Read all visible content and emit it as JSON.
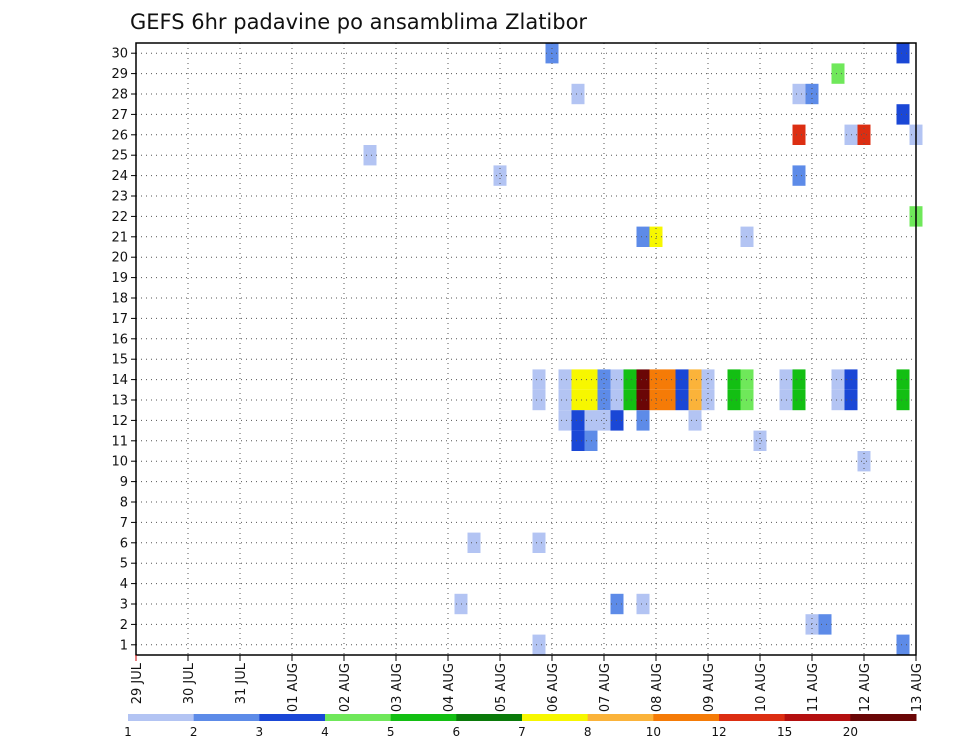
{
  "chart_data": {
    "type": "heatmap",
    "title": "GEFS 6hr padavine po ansamblima Zlatibor",
    "x_tick_labels": [
      "29 JUL",
      "30 JUL",
      "31 JUL",
      "01 AUG",
      "02 AUG",
      "03 AUG",
      "04 AUG",
      "05 AUG",
      "06 AUG",
      "07 AUG",
      "08 AUG",
      "09 AUG",
      "10 AUG",
      "11 AUG",
      "12 AUG",
      "13 AUG"
    ],
    "y_tick_labels": [
      "1",
      "2",
      "3",
      "4",
      "5",
      "6",
      "7",
      "8",
      "9",
      "10",
      "11",
      "12",
      "13",
      "14",
      "15",
      "16",
      "17",
      "18",
      "19",
      "20",
      "21",
      "22",
      "23",
      "24",
      "25",
      "26",
      "27",
      "28",
      "29",
      "30"
    ],
    "ylim": [
      0.5,
      30.5
    ],
    "xlim_days": [
      0,
      15
    ],
    "grid": true,
    "levels": {
      "labels": [
        "1",
        "2",
        "3",
        "4",
        "5",
        "6",
        "7",
        "8",
        "10",
        "12",
        "15",
        "20"
      ],
      "colors": [
        "#b3c4f3",
        "#5d8be8",
        "#1a47d6",
        "#6fe85a",
        "#13bf13",
        "#0a7a0a",
        "#f7f700",
        "#fbb33a",
        "#f57b07",
        "#dc2e12",
        "#b40f0f",
        "#6a0606"
      ]
    },
    "cells": [
      {
        "day": 8.0,
        "member": 30,
        "cls": 1
      },
      {
        "day": 14.75,
        "member": 30,
        "cls": 2
      },
      {
        "day": 13.5,
        "member": 29,
        "cls": 3
      },
      {
        "day": 8.5,
        "member": 28,
        "cls": 0
      },
      {
        "day": 12.75,
        "member": 28,
        "cls": 0
      },
      {
        "day": 13.0,
        "member": 28,
        "cls": 1
      },
      {
        "day": 14.75,
        "member": 27,
        "cls": 2
      },
      {
        "day": 12.75,
        "member": 26,
        "cls": 9
      },
      {
        "day": 13.75,
        "member": 26,
        "cls": 0
      },
      {
        "day": 14.0,
        "member": 26,
        "cls": 9
      },
      {
        "day": 15.0,
        "member": 26,
        "cls": 0
      },
      {
        "day": 4.5,
        "member": 25,
        "cls": 0
      },
      {
        "day": 7.0,
        "member": 24,
        "cls": 0
      },
      {
        "day": 12.75,
        "member": 24,
        "cls": 1
      },
      {
        "day": 15.0,
        "member": 22,
        "cls": 3
      },
      {
        "day": 9.75,
        "member": 21,
        "cls": 1
      },
      {
        "day": 10.0,
        "member": 21,
        "cls": 6
      },
      {
        "day": 11.75,
        "member": 21,
        "cls": 0
      },
      {
        "day": 7.75,
        "member": 14,
        "cls": 0
      },
      {
        "day": 7.75,
        "member": 13,
        "cls": 0
      },
      {
        "day": 8.25,
        "member": 14,
        "cls": 0
      },
      {
        "day": 8.25,
        "member": 13,
        "cls": 0
      },
      {
        "day": 8.5,
        "member": 14,
        "cls": 6
      },
      {
        "day": 8.5,
        "member": 13,
        "cls": 6
      },
      {
        "day": 8.75,
        "member": 14,
        "cls": 6
      },
      {
        "day": 8.75,
        "member": 13,
        "cls": 6
      },
      {
        "day": 9.0,
        "member": 14,
        "cls": 1
      },
      {
        "day": 9.0,
        "member": 13,
        "cls": 1
      },
      {
        "day": 9.25,
        "member": 14,
        "cls": 0
      },
      {
        "day": 9.25,
        "member": 13,
        "cls": 0
      },
      {
        "day": 9.5,
        "member": 14,
        "cls": 4
      },
      {
        "day": 9.5,
        "member": 13,
        "cls": 4
      },
      {
        "day": 9.75,
        "member": 14,
        "cls": 11
      },
      {
        "day": 9.75,
        "member": 13,
        "cls": 11
      },
      {
        "day": 10.0,
        "member": 14,
        "cls": 8
      },
      {
        "day": 10.0,
        "member": 13,
        "cls": 8
      },
      {
        "day": 10.25,
        "member": 14,
        "cls": 8
      },
      {
        "day": 10.25,
        "member": 13,
        "cls": 8
      },
      {
        "day": 10.5,
        "member": 14,
        "cls": 2
      },
      {
        "day": 10.5,
        "member": 13,
        "cls": 2
      },
      {
        "day": 10.75,
        "member": 14,
        "cls": 7
      },
      {
        "day": 10.75,
        "member": 13,
        "cls": 7
      },
      {
        "day": 11.0,
        "member": 14,
        "cls": 0
      },
      {
        "day": 11.0,
        "member": 13,
        "cls": 0
      },
      {
        "day": 11.5,
        "member": 14,
        "cls": 4
      },
      {
        "day": 11.5,
        "member": 13,
        "cls": 4
      },
      {
        "day": 11.75,
        "member": 14,
        "cls": 3
      },
      {
        "day": 11.75,
        "member": 13,
        "cls": 3
      },
      {
        "day": 12.5,
        "member": 14,
        "cls": 0
      },
      {
        "day": 12.5,
        "member": 13,
        "cls": 0
      },
      {
        "day": 12.75,
        "member": 14,
        "cls": 4
      },
      {
        "day": 12.75,
        "member": 13,
        "cls": 4
      },
      {
        "day": 13.5,
        "member": 14,
        "cls": 0
      },
      {
        "day": 13.5,
        "member": 13,
        "cls": 0
      },
      {
        "day": 13.75,
        "member": 14,
        "cls": 2
      },
      {
        "day": 13.75,
        "member": 13,
        "cls": 2
      },
      {
        "day": 14.75,
        "member": 14,
        "cls": 4
      },
      {
        "day": 14.75,
        "member": 13,
        "cls": 4
      },
      {
        "day": 8.25,
        "member": 12,
        "cls": 0
      },
      {
        "day": 8.5,
        "member": 12,
        "cls": 2
      },
      {
        "day": 8.75,
        "member": 12,
        "cls": 0
      },
      {
        "day": 9.0,
        "member": 12,
        "cls": 0
      },
      {
        "day": 9.25,
        "member": 12,
        "cls": 2
      },
      {
        "day": 9.75,
        "member": 12,
        "cls": 1
      },
      {
        "day": 10.75,
        "member": 12,
        "cls": 0
      },
      {
        "day": 8.5,
        "member": 11,
        "cls": 2
      },
      {
        "day": 8.75,
        "member": 11,
        "cls": 1
      },
      {
        "day": 12.0,
        "member": 11,
        "cls": 0
      },
      {
        "day": 14.0,
        "member": 10,
        "cls": 0
      },
      {
        "day": 6.5,
        "member": 6,
        "cls": 0
      },
      {
        "day": 7.75,
        "member": 6,
        "cls": 0
      },
      {
        "day": 6.25,
        "member": 3,
        "cls": 0
      },
      {
        "day": 9.25,
        "member": 3,
        "cls": 1
      },
      {
        "day": 9.75,
        "member": 3,
        "cls": 0
      },
      {
        "day": 13.0,
        "member": 2,
        "cls": 0
      },
      {
        "day": 13.25,
        "member": 2,
        "cls": 1
      },
      {
        "day": 7.75,
        "member": 1,
        "cls": 0
      },
      {
        "day": 14.75,
        "member": 1,
        "cls": 1
      }
    ]
  }
}
